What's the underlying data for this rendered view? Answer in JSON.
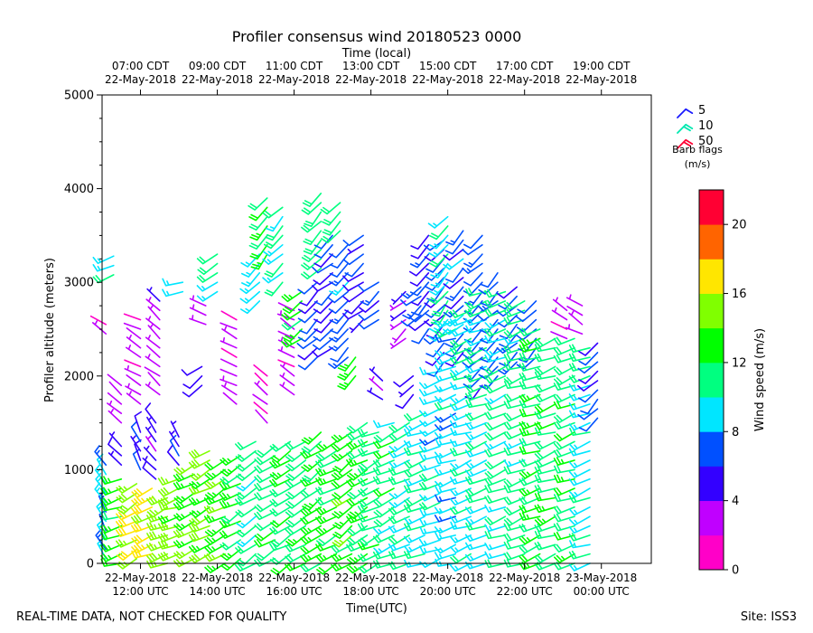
{
  "chart_data": {
    "type": "wind-barb-profile",
    "title": "Profiler consensus wind 20180523 0000",
    "xlabel": "Time(UTC)",
    "xlabel_top": "Time (local)",
    "ylabel": "Profiler altitude (meters)",
    "ylim": [
      0,
      5000
    ],
    "xlim_hours_utc": [
      11.0,
      25.3
    ],
    "y_ticks": [
      "0",
      "1000",
      "2000",
      "3000",
      "4000",
      "5000"
    ],
    "x_ticks_bottom": [
      {
        "hour": 12,
        "date": "22-May-2018",
        "time": "12:00 UTC"
      },
      {
        "hour": 14,
        "date": "22-May-2018",
        "time": "14:00 UTC"
      },
      {
        "hour": 16,
        "date": "22-May-2018",
        "time": "16:00 UTC"
      },
      {
        "hour": 18,
        "date": "22-May-2018",
        "time": "18:00 UTC"
      },
      {
        "hour": 20,
        "date": "22-May-2018",
        "time": "20:00 UTC"
      },
      {
        "hour": 22,
        "date": "22-May-2018",
        "time": "22:00 UTC"
      },
      {
        "hour": 24,
        "date": "23-May-2018",
        "time": "00:00 UTC"
      }
    ],
    "x_ticks_top": [
      {
        "hour": 12,
        "time": "07:00 CDT",
        "date": "22-May-2018"
      },
      {
        "hour": 14,
        "time": "09:00 CDT",
        "date": "22-May-2018"
      },
      {
        "hour": 16,
        "time": "11:00 CDT",
        "date": "22-May-2018"
      },
      {
        "hour": 18,
        "time": "13:00 CDT",
        "date": "22-May-2018"
      },
      {
        "hour": 20,
        "time": "15:00 CDT",
        "date": "22-May-2018"
      },
      {
        "hour": 22,
        "time": "17:00 CDT",
        "date": "22-May-2018"
      },
      {
        "hour": 24,
        "time": "19:00 CDT",
        "date": "22-May-2018"
      }
    ],
    "legend": {
      "title": "Barb flags",
      "units": "(m/s)",
      "entries": [
        {
          "label": "5",
          "speed": 5,
          "color": "#1a1aff"
        },
        {
          "label": "10",
          "speed": 10,
          "color": "#00e8b0"
        },
        {
          "label": "50",
          "speed": 50,
          "color": "#ff0033"
        }
      ]
    },
    "colorbar": {
      "label": "Wind speed (m/s)",
      "range": [
        0,
        22
      ],
      "tick_values": [
        0,
        4,
        8,
        12,
        16,
        20
      ],
      "tick_labels": [
        "0",
        "4",
        "8",
        "12",
        "16",
        "20"
      ],
      "bands": [
        "#ff00c8",
        "#c000ff",
        "#3300ff",
        "#0050ff",
        "#00e6ff",
        "#00ff80",
        "#00ff00",
        "#80ff00",
        "#ffe600",
        "#ff6400",
        "#ff0033"
      ]
    },
    "barb_groups": [
      {
        "t": 11.1,
        "z_min": 50,
        "z_max": 1100,
        "speed": 8.5,
        "dir": 330
      },
      {
        "t": 11.1,
        "z_min": 2450,
        "z_max": 2600,
        "speed": 2.0,
        "dir": 300
      },
      {
        "t": 11.3,
        "z_min": 3080,
        "z_max": 3280,
        "speed": 9.0,
        "dir": 250
      },
      {
        "t": 11.5,
        "z_min": 0,
        "z_max": 950,
        "speed": 13.0,
        "dir": 250
      },
      {
        "t": 11.5,
        "z_min": 1050,
        "z_max": 1300,
        "speed": 5.5,
        "dir": 320
      },
      {
        "t": 11.5,
        "z_min": 1500,
        "z_max": 1900,
        "speed": 2.5,
        "dir": 310
      },
      {
        "t": 11.9,
        "z_min": 50,
        "z_max": 900,
        "speed": 15.5,
        "dir": 240
      },
      {
        "t": 12.0,
        "z_min": 1000,
        "z_max": 1400,
        "speed": 6.0,
        "dir": 330
      },
      {
        "t": 12.0,
        "z_min": 1700,
        "z_max": 2600,
        "speed": 3.0,
        "dir": 300
      },
      {
        "t": 12.3,
        "z_min": 100,
        "z_max": 800,
        "speed": 17.0,
        "dir": 250
      },
      {
        "t": 12.4,
        "z_min": 900,
        "z_max": 1500,
        "speed": 5.0,
        "dir": 320
      },
      {
        "t": 12.5,
        "z_min": 1800,
        "z_max": 2800,
        "speed": 3.5,
        "dir": 310
      },
      {
        "t": 12.7,
        "z_min": 0,
        "z_max": 700,
        "speed": 14.5,
        "dir": 245
      },
      {
        "t": 13.0,
        "z_min": 100,
        "z_max": 900,
        "speed": 15.0,
        "dir": 250
      },
      {
        "t": 13.0,
        "z_min": 1050,
        "z_max": 1350,
        "speed": 5.5,
        "dir": 330
      },
      {
        "t": 13.1,
        "z_min": 2900,
        "z_max": 3050,
        "speed": 9.0,
        "dir": 250
      },
      {
        "t": 13.4,
        "z_min": 50,
        "z_max": 1100,
        "speed": 14.0,
        "dir": 245
      },
      {
        "t": 13.6,
        "z_min": 1900,
        "z_max": 2100,
        "speed": 6.0,
        "dir": 235
      },
      {
        "t": 13.7,
        "z_min": 2550,
        "z_max": 2800,
        "speed": 3.0,
        "dir": 300
      },
      {
        "t": 13.8,
        "z_min": 100,
        "z_max": 1200,
        "speed": 14.5,
        "dir": 240
      },
      {
        "t": 14.0,
        "z_min": 2900,
        "z_max": 3300,
        "speed": 10.5,
        "dir": 235
      },
      {
        "t": 14.2,
        "z_min": 0,
        "z_max": 1100,
        "speed": 13.5,
        "dir": 240
      },
      {
        "t": 14.5,
        "z_min": 1700,
        "z_max": 2650,
        "speed": 2.5,
        "dir": 300
      },
      {
        "t": 14.6,
        "z_min": 50,
        "z_max": 1200,
        "speed": 12.5,
        "dir": 240
      },
      {
        "t": 15.0,
        "z_min": 0,
        "z_max": 1300,
        "speed": 11.0,
        "dir": 235
      },
      {
        "t": 15.1,
        "z_min": 2800,
        "z_max": 3350,
        "speed": 9.0,
        "dir": 225
      },
      {
        "t": 15.3,
        "z_min": 1500,
        "z_max": 2000,
        "speed": 2.5,
        "dir": 310
      },
      {
        "t": 15.3,
        "z_min": 3300,
        "z_max": 3900,
        "speed": 12.5,
        "dir": 220
      },
      {
        "t": 15.5,
        "z_min": 50,
        "z_max": 1250,
        "speed": 11.0,
        "dir": 240
      },
      {
        "t": 15.7,
        "z_min": 3000,
        "z_max": 3850,
        "speed": 10.0,
        "dir": 225
      },
      {
        "t": 15.9,
        "z_min": 0,
        "z_max": 1300,
        "speed": 12.0,
        "dir": 240
      },
      {
        "t": 16.0,
        "z_min": 1800,
        "z_max": 2700,
        "speed": 2.5,
        "dir": 300
      },
      {
        "t": 16.2,
        "z_min": 2400,
        "z_max": 2950,
        "speed": 12.0,
        "dir": 230
      },
      {
        "t": 16.3,
        "z_min": 0,
        "z_max": 1350,
        "speed": 11.5,
        "dir": 240
      },
      {
        "t": 16.6,
        "z_min": 2200,
        "z_max": 3050,
        "speed": 6.5,
        "dir": 225
      },
      {
        "t": 16.7,
        "z_min": 0,
        "z_max": 1400,
        "speed": 12.5,
        "dir": 235
      },
      {
        "t": 16.7,
        "z_min": 3150,
        "z_max": 3950,
        "speed": 11.0,
        "dir": 225
      },
      {
        "t": 17.0,
        "z_min": 2300,
        "z_max": 3550,
        "speed": 6.0,
        "dir": 230
      },
      {
        "t": 17.1,
        "z_min": 0,
        "z_max": 1350,
        "speed": 12.5,
        "dir": 240
      },
      {
        "t": 17.2,
        "z_min": 3550,
        "z_max": 3900,
        "speed": 11.0,
        "dir": 225
      },
      {
        "t": 17.4,
        "z_min": 2200,
        "z_max": 3400,
        "speed": 7.0,
        "dir": 225
      },
      {
        "t": 17.5,
        "z_min": 0,
        "z_max": 1450,
        "speed": 13.0,
        "dir": 235
      },
      {
        "t": 17.6,
        "z_min": 2000,
        "z_max": 2200,
        "speed": 13.5,
        "dir": 225
      },
      {
        "t": 17.8,
        "z_min": 2600,
        "z_max": 3500,
        "speed": 6.0,
        "dir": 230
      },
      {
        "t": 17.9,
        "z_min": 0,
        "z_max": 1500,
        "speed": 12.5,
        "dir": 240
      },
      {
        "t": 18.2,
        "z_min": 0,
        "z_max": 1450,
        "speed": 11.0,
        "dir": 245
      },
      {
        "t": 18.2,
        "z_min": 2600,
        "z_max": 3000,
        "speed": 6.5,
        "dir": 230
      },
      {
        "t": 18.3,
        "z_min": 1750,
        "z_max": 2000,
        "speed": 4.0,
        "dir": 310
      },
      {
        "t": 18.6,
        "z_min": 0,
        "z_max": 1500,
        "speed": 11.0,
        "dir": 245
      },
      {
        "t": 18.9,
        "z_min": 2400,
        "z_max": 2950,
        "speed": 4.0,
        "dir": 230
      },
      {
        "t": 19.0,
        "z_min": 0,
        "z_max": 1550,
        "speed": 10.0,
        "dir": 245
      },
      {
        "t": 19.1,
        "z_min": 1800,
        "z_max": 2050,
        "speed": 6.0,
        "dir": 225
      },
      {
        "t": 19.3,
        "z_min": 2650,
        "z_max": 2950,
        "speed": 6.5,
        "dir": 230
      },
      {
        "t": 19.4,
        "z_min": 0,
        "z_max": 1650,
        "speed": 9.5,
        "dir": 250
      },
      {
        "t": 19.5,
        "z_min": 2500,
        "z_max": 3550,
        "speed": 6.5,
        "dir": 225
      },
      {
        "t": 19.8,
        "z_min": 50,
        "z_max": 2050,
        "speed": 9.0,
        "dir": 250
      },
      {
        "t": 19.9,
        "z_min": 2150,
        "z_max": 3500,
        "speed": 6.0,
        "dir": 225
      },
      {
        "t": 20.0,
        "z_min": 2500,
        "z_max": 3750,
        "speed": 9.5,
        "dir": 220
      },
      {
        "t": 20.2,
        "z_min": 0,
        "z_max": 2600,
        "speed": 9.0,
        "dir": 250
      },
      {
        "t": 20.4,
        "z_min": 2250,
        "z_max": 3600,
        "speed": 7.0,
        "dir": 225
      },
      {
        "t": 20.6,
        "z_min": 0,
        "z_max": 2750,
        "speed": 9.5,
        "dir": 250
      },
      {
        "t": 20.9,
        "z_min": 1900,
        "z_max": 3550,
        "speed": 7.0,
        "dir": 225
      },
      {
        "t": 21.0,
        "z_min": 0,
        "z_max": 2950,
        "speed": 10.0,
        "dir": 250
      },
      {
        "t": 21.3,
        "z_min": 2000,
        "z_max": 3100,
        "speed": 7.0,
        "dir": 225
      },
      {
        "t": 21.5,
        "z_min": 0,
        "z_max": 2900,
        "speed": 10.5,
        "dir": 250
      },
      {
        "t": 21.8,
        "z_min": 2150,
        "z_max": 2950,
        "speed": 6.5,
        "dir": 225
      },
      {
        "t": 22.0,
        "z_min": 0,
        "z_max": 2800,
        "speed": 11.0,
        "dir": 250
      },
      {
        "t": 22.3,
        "z_min": 2200,
        "z_max": 2800,
        "speed": 6.5,
        "dir": 225
      },
      {
        "t": 22.4,
        "z_min": 0,
        "z_max": 2500,
        "speed": 12.0,
        "dir": 250
      },
      {
        "t": 22.8,
        "z_min": 0,
        "z_max": 2450,
        "speed": 11.5,
        "dir": 250
      },
      {
        "t": 23.1,
        "z_min": 2400,
        "z_max": 2700,
        "speed": 2.5,
        "dir": 300
      },
      {
        "t": 23.3,
        "z_min": 0,
        "z_max": 2450,
        "speed": 11.5,
        "dir": 250
      },
      {
        "t": 23.5,
        "z_min": 2450,
        "z_max": 2750,
        "speed": 2.5,
        "dir": 300
      },
      {
        "t": 23.7,
        "z_min": 0,
        "z_max": 2350,
        "speed": 10.0,
        "dir": 250
      },
      {
        "t": 23.9,
        "z_min": 1550,
        "z_max": 2350,
        "speed": 6.5,
        "dir": 225
      }
    ]
  },
  "footer": {
    "left_note": "REAL-TIME DATA, NOT CHECKED FOR QUALITY",
    "site": "Site: ISS3"
  }
}
